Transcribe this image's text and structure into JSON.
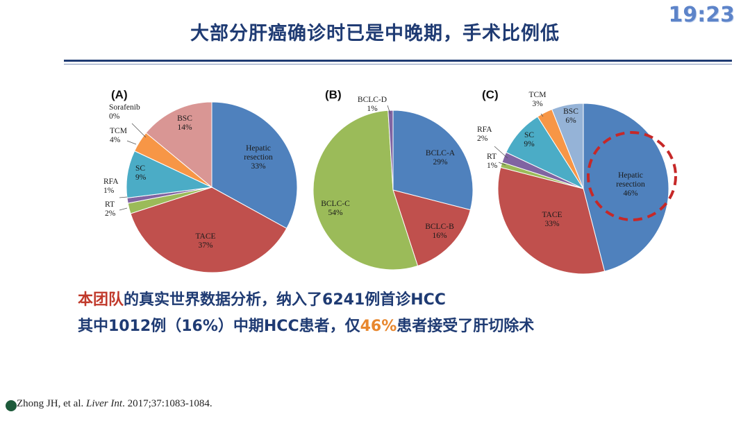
{
  "header": {
    "title": "大部分肝癌确诊时已是中晚期，手术比例低",
    "clock": "19:23"
  },
  "body": {
    "line1_highlight": "本团队",
    "line1_rest": "的真实世界数据分析，纳入了6241例首诊HCC",
    "line2_start": "其中1012例（16%）中期HCC患者，仅",
    "line2_highlight": "46%",
    "line2_end": "患者接受了肝切除术"
  },
  "citation": {
    "authors": "Zhong JH, et al.",
    "journal": "Liver Int",
    "rest": ". 2017;37:1083-1084."
  },
  "colors": {
    "title": "#1f3b73",
    "highlight_red": "#c0392b",
    "highlight_orange": "#e8872e",
    "callout_circle": "#c62828"
  },
  "chart_data": [
    {
      "type": "pie",
      "panel_label": "(A)",
      "slices": [
        {
          "label": "Hepatic resection",
          "value": 33,
          "display": "33%",
          "color": "#4f81bd"
        },
        {
          "label": "TACE",
          "value": 37,
          "display": "37%",
          "color": "#c0504d"
        },
        {
          "label": "RT",
          "value": 2,
          "display": "2%",
          "color": "#9bbb59"
        },
        {
          "label": "RFA",
          "value": 1,
          "display": "1%",
          "color": "#8064a2"
        },
        {
          "label": "SC",
          "value": 9,
          "display": "9%",
          "color": "#4bacc6"
        },
        {
          "label": "Sorafenib",
          "value": 0,
          "display": "0%",
          "color": "#3c6fa8"
        },
        {
          "label": "TCM",
          "value": 4,
          "display": "4%",
          "color": "#f79646"
        },
        {
          "label": "BSC",
          "value": 14,
          "display": "14%",
          "color": "#d99694"
        }
      ]
    },
    {
      "type": "pie",
      "panel_label": "(B)",
      "slices": [
        {
          "label": "BCLC-A",
          "value": 29,
          "display": "29%",
          "color": "#4f81bd"
        },
        {
          "label": "BCLC-B",
          "value": 16,
          "display": "16%",
          "color": "#c0504d"
        },
        {
          "label": "BCLC-C",
          "value": 54,
          "display": "54%",
          "color": "#9bbb59"
        },
        {
          "label": "BCLC-D",
          "value": 1,
          "display": "1%",
          "color": "#8064a2"
        }
      ]
    },
    {
      "type": "pie",
      "panel_label": "(C)",
      "highlighted_slice": "Hepatic resection",
      "slices": [
        {
          "label": "Hepatic resection",
          "value": 46,
          "display": "46%",
          "color": "#4f81bd"
        },
        {
          "label": "TACE",
          "value": 33,
          "display": "33%",
          "color": "#c0504d"
        },
        {
          "label": "RT",
          "value": 1,
          "display": "1%",
          "color": "#9bbb59"
        },
        {
          "label": "RFA",
          "value": 2,
          "display": "2%",
          "color": "#8064a2"
        },
        {
          "label": "SC",
          "value": 9,
          "display": "9%",
          "color": "#4bacc6"
        },
        {
          "label": "TCM",
          "value": 3,
          "display": "3%",
          "color": "#f79646"
        },
        {
          "label": "BSC",
          "value": 6,
          "display": "6%",
          "color": "#95b3d7"
        }
      ]
    }
  ]
}
